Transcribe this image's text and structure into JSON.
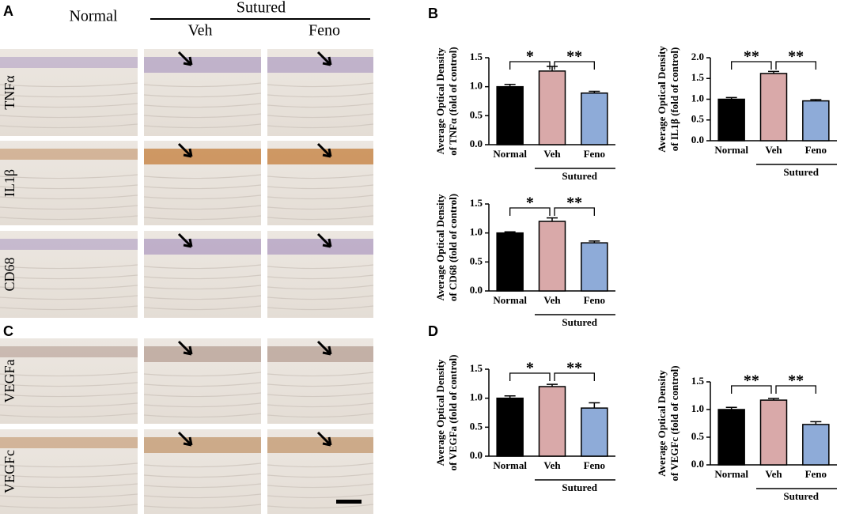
{
  "figure": {
    "panel_labels": [
      "A",
      "B",
      "C",
      "D"
    ],
    "micrograph_columns": [
      "Normal",
      "Veh",
      "Feno"
    ],
    "micrograph_group": "Sutured",
    "micrograph_rows_A": [
      "TNFα",
      "IL1β",
      "CD68"
    ],
    "micrograph_rows_C": [
      "VEGFa",
      "VEGFc"
    ]
  },
  "chart_data": [
    {
      "type": "bar",
      "ylabel": [
        "Average Optical Density",
        "of TNFα (fold of control)"
      ],
      "categories": [
        "Normal",
        "Veh",
        "Feno"
      ],
      "group_label": "Sutured",
      "values": [
        1.0,
        1.27,
        0.89
      ],
      "errors": [
        0.04,
        0.08,
        0.03
      ],
      "colors": [
        "#000000",
        "#d9a9a9",
        "#8eabd8"
      ],
      "ylim": [
        0,
        1.5
      ],
      "yticks": [
        {
          "value": 0,
          "label": "0.0"
        },
        {
          "value": 0.5,
          "label": "0.5"
        },
        {
          "value": 1,
          "label": "1.0"
        },
        {
          "value": 1.5,
          "label": "1.5"
        }
      ],
      "significance": [
        "*",
        "**"
      ]
    },
    {
      "type": "bar",
      "ylabel": [
        "Average Optical Density",
        "of IL1β (fold of control)"
      ],
      "categories": [
        "Normal",
        "Veh",
        "Feno"
      ],
      "group_label": "Sutured",
      "values": [
        1.0,
        1.62,
        0.96
      ],
      "errors": [
        0.04,
        0.05,
        0.03
      ],
      "colors": [
        "#000000",
        "#d9a9a9",
        "#8eabd8"
      ],
      "ylim": [
        0,
        2
      ],
      "yticks": [
        {
          "value": 0,
          "label": "0.0"
        },
        {
          "value": 0.5,
          "label": "0.5"
        },
        {
          "value": 1,
          "label": "1.0"
        },
        {
          "value": 1.5,
          "label": "1.5"
        },
        {
          "value": 2,
          "label": "2.0"
        }
      ],
      "significance": [
        "**",
        "**"
      ]
    },
    {
      "type": "bar",
      "ylabel": [
        "Average Optical Density",
        "of CD68 (fold of control)"
      ],
      "categories": [
        "Normal",
        "Veh",
        "Feno"
      ],
      "group_label": "Sutured",
      "values": [
        1.0,
        1.2,
        0.83
      ],
      "errors": [
        0.02,
        0.06,
        0.03
      ],
      "colors": [
        "#000000",
        "#d9a9a9",
        "#8eabd8"
      ],
      "ylim": [
        0,
        1.5
      ],
      "yticks": [
        {
          "value": 0,
          "label": "0.0"
        },
        {
          "value": 0.5,
          "label": "0.5"
        },
        {
          "value": 1,
          "label": "1.0"
        },
        {
          "value": 1.5,
          "label": "1.5"
        }
      ],
      "significance": [
        "*",
        "**"
      ]
    },
    {
      "type": "bar",
      "ylabel": [
        "Average Optical Density",
        "of VEGFa (fold of control)"
      ],
      "categories": [
        "Normal",
        "Veh",
        "Feno"
      ],
      "group_label": "Sutured",
      "values": [
        1.0,
        1.2,
        0.83
      ],
      "errors": [
        0.04,
        0.04,
        0.09
      ],
      "colors": [
        "#000000",
        "#d9a9a9",
        "#8eabd8"
      ],
      "ylim": [
        0,
        1.5
      ],
      "yticks": [
        {
          "value": 0,
          "label": "0.0"
        },
        {
          "value": 0.5,
          "label": "0.5"
        },
        {
          "value": 1,
          "label": "1.0"
        },
        {
          "value": 1.5,
          "label": "1.5"
        }
      ],
      "significance": [
        "*",
        "**"
      ]
    },
    {
      "type": "bar",
      "ylabel": [
        "Average Optical Density",
        "of VEGFc (fold of control)"
      ],
      "categories": [
        "Normal",
        "Veh",
        "Feno"
      ],
      "group_label": "Sutured",
      "values": [
        1.0,
        1.17,
        0.73
      ],
      "errors": [
        0.04,
        0.03,
        0.05
      ],
      "colors": [
        "#000000",
        "#d9a9a9",
        "#8eabd8"
      ],
      "ylim": [
        0,
        1.5
      ],
      "yticks": [
        {
          "value": 0,
          "label": "0.0"
        },
        {
          "value": 0.5,
          "label": "0.5"
        },
        {
          "value": 1,
          "label": "1.0"
        },
        {
          "value": 1.5,
          "label": "1.5"
        }
      ],
      "significance": [
        "**",
        "**"
      ]
    }
  ]
}
